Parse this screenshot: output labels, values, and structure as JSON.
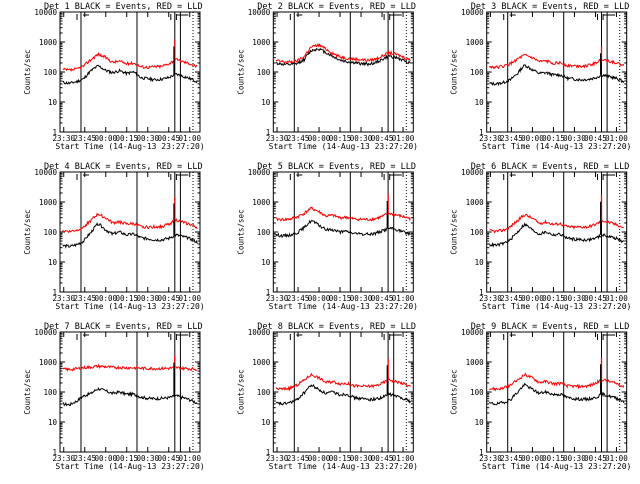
{
  "chart_data": {
    "type": "line",
    "layout": "3x3 grid of panels",
    "ylabel": "Counts/sec",
    "xlabel": "Start Time (14-Aug-13 23:27:20)",
    "x_tick_labels": [
      "23:30",
      "23:45",
      "00:00",
      "00:15",
      "00:30",
      "00:45",
      "01:00"
    ],
    "y_tick_labels": [
      "1",
      "10",
      "100",
      "1000",
      "10000"
    ],
    "y_scale": "log",
    "ylim": [
      1,
      10000
    ],
    "xlim_minutes_after_start": [
      0,
      100
    ],
    "legend_text": "BLACK = Events, RED = LLD",
    "colors": {
      "events": "#000000",
      "lld": "#ff0000"
    },
    "panels": [
      {
        "title": "Det 1",
        "title_suffix": "BLACK = Events, RED = LLD",
        "events": [
          45,
          42,
          48,
          60,
          110,
          160,
          115,
          95,
          110,
          90,
          100,
          65,
          60,
          55,
          58,
          65,
          85,
          72,
          60,
          48
        ],
        "lld": [
          120,
          115,
          125,
          160,
          260,
          390,
          310,
          210,
          230,
          190,
          200,
          150,
          145,
          150,
          155,
          190,
          260,
          220,
          190,
          150
        ],
        "vlines_min": [
          15,
          55,
          82,
          86
        ],
        "spike_min": 82,
        "spike_value": 1200
      },
      {
        "title": "Det 2",
        "title_suffix": "BLACK = Events, RED = LLD",
        "events": [
          200,
          180,
          175,
          190,
          260,
          520,
          600,
          450,
          330,
          250,
          220,
          205,
          190,
          185,
          200,
          260,
          340,
          300,
          240,
          200
        ],
        "lld": [
          240,
          220,
          215,
          235,
          330,
          680,
          800,
          590,
          420,
          320,
          290,
          270,
          260,
          245,
          265,
          340,
          440,
          390,
          310,
          250
        ],
        "vlines_min": [
          15,
          55,
          82,
          86
        ],
        "spike_min": null,
        "spike_value": null
      },
      {
        "title": "Det 3",
        "title_suffix": "BLACK = Events, RED = LLD",
        "events": [
          42,
          40,
          45,
          55,
          90,
          170,
          120,
          90,
          95,
          80,
          80,
          62,
          58,
          55,
          57,
          65,
          80,
          70,
          60,
          47
        ],
        "lld": [
          150,
          145,
          155,
          190,
          270,
          360,
          300,
          220,
          230,
          200,
          200,
          165,
          160,
          160,
          165,
          200,
          270,
          230,
          200,
          160
        ],
        "vlines_min": [
          15,
          55,
          82,
          86
        ],
        "spike_min": 82,
        "spike_value": 700
      },
      {
        "title": "Det 4",
        "title_suffix": "BLACK = Events, RED = LLD",
        "events": [
          35,
          33,
          38,
          50,
          95,
          190,
          120,
          85,
          100,
          80,
          85,
          65,
          60,
          55,
          55,
          62,
          80,
          70,
          60,
          45
        ],
        "lld": [
          110,
          105,
          115,
          150,
          240,
          400,
          300,
          200,
          220,
          185,
          190,
          150,
          145,
          150,
          150,
          185,
          250,
          210,
          180,
          140
        ],
        "vlines_min": [
          15,
          55,
          82,
          86
        ],
        "spike_min": 82,
        "spike_value": 1500
      },
      {
        "title": "Det 5",
        "title_suffix": "BLACK = Events, RED = LLD",
        "events": [
          80,
          75,
          80,
          95,
          140,
          240,
          170,
          120,
          120,
          100,
          105,
          90,
          85,
          85,
          90,
          110,
          135,
          120,
          100,
          85
        ],
        "lld": [
          270,
          260,
          270,
          320,
          420,
          620,
          480,
          340,
          360,
          300,
          310,
          270,
          265,
          260,
          275,
          330,
          420,
          370,
          320,
          280
        ],
        "vlines_min": [
          15,
          55,
          82,
          86
        ],
        "spike_min": 82,
        "spike_value": 1800
      },
      {
        "title": "Det 6",
        "title_suffix": "BLACK = Events, RED = LLD",
        "events": [
          38,
          36,
          42,
          55,
          100,
          180,
          120,
          85,
          100,
          80,
          85,
          62,
          58,
          55,
          55,
          62,
          80,
          70,
          60,
          45
        ],
        "lld": [
          110,
          105,
          115,
          150,
          240,
          380,
          290,
          195,
          215,
          180,
          190,
          150,
          145,
          148,
          150,
          180,
          240,
          205,
          175,
          135
        ],
        "vlines_min": [
          15,
          55,
          82,
          86
        ],
        "spike_min": 82,
        "spike_value": 1700
      },
      {
        "title": "Det 7",
        "title_suffix": "BLACK = Events, RED = LLD",
        "events": [
          40,
          38,
          50,
          75,
          90,
          130,
          110,
          90,
          100,
          85,
          85,
          68,
          62,
          60,
          62,
          65,
          75,
          65,
          55,
          42
        ],
        "lld": [
          580,
          560,
          600,
          650,
          680,
          720,
          700,
          660,
          660,
          640,
          640,
          620,
          610,
          605,
          610,
          620,
          650,
          620,
          600,
          570
        ],
        "vlines_min": [
          15,
          55,
          82,
          86
        ],
        "spike_min": 82,
        "spike_value": 1600
      },
      {
        "title": "Det 8",
        "title_suffix": "BLACK = Events, RED = LLD",
        "events": [
          42,
          40,
          45,
          55,
          95,
          170,
          120,
          90,
          100,
          82,
          85,
          65,
          60,
          57,
          58,
          65,
          85,
          72,
          62,
          48
        ],
        "lld": [
          130,
          125,
          135,
          170,
          250,
          380,
          300,
          210,
          225,
          190,
          195,
          160,
          155,
          155,
          160,
          195,
          260,
          220,
          190,
          150
        ],
        "vlines_min": [
          15,
          55,
          82,
          86
        ],
        "spike_min": 82,
        "spike_value": 1300
      },
      {
        "title": "Det 9",
        "title_suffix": "BLACK = Events, RED = LLD",
        "events": [
          42,
          40,
          45,
          56,
          98,
          175,
          125,
          90,
          100,
          82,
          85,
          65,
          60,
          57,
          58,
          65,
          85,
          72,
          62,
          48
        ],
        "lld": [
          130,
          125,
          135,
          170,
          250,
          380,
          300,
          210,
          225,
          190,
          195,
          160,
          155,
          155,
          160,
          195,
          260,
          220,
          190,
          150
        ],
        "vlines_min": [
          15,
          55,
          82,
          86
        ],
        "spike_min": 82,
        "spike_value": 1400
      }
    ]
  }
}
